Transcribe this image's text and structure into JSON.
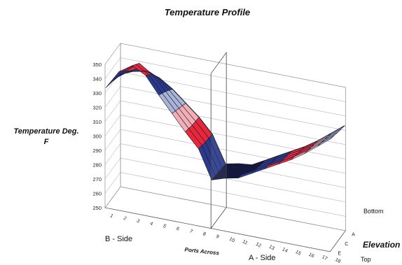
{
  "chart_data": {
    "type": "surface",
    "title": "Temperature Profile",
    "zlabel": [
      "Temperature Deg.",
      "F"
    ],
    "xlabel": "Ports Across",
    "ylabel": "Elevation",
    "x_categories": [
      "1",
      "2",
      "3",
      "4",
      "5",
      "6",
      "7",
      "8",
      "9",
      "10",
      "11",
      "12",
      "13",
      "14",
      "15",
      "16",
      "17",
      "18"
    ],
    "y_categories": [
      "A",
      "C",
      "E"
    ],
    "y_end_labels": [
      "Top",
      "Bottom"
    ],
    "side_labels": [
      "B - Side",
      "A - Side"
    ],
    "zlim": [
      250,
      350
    ],
    "z_ticks": [
      250,
      260,
      270,
      280,
      290,
      300,
      310,
      320,
      330,
      340,
      350
    ],
    "grid": true,
    "palette": {
      "red": "#e8283a",
      "pink": "#f2aeb4",
      "white": "#eef0f6",
      "light_blue": "#aab4d6",
      "blue": "#2a3a8c",
      "dark": "#14183e",
      "wire": "#1a1c30"
    },
    "color_bands": [
      {
        "min": 250,
        "max": 290,
        "color": "dark"
      },
      {
        "min": 290,
        "max": 300,
        "color": "blue"
      },
      {
        "min": 300,
        "max": 310,
        "color": "red"
      },
      {
        "min": 310,
        "max": 320,
        "color": "pink"
      },
      {
        "min": 320,
        "max": 330,
        "color": "light_blue"
      },
      {
        "min": 330,
        "max": 340,
        "color": "blue"
      },
      {
        "min": 340,
        "max": 360,
        "color": "red"
      }
    ],
    "series": [
      {
        "name": "A",
        "values": [
          329,
          333,
          335,
          332,
          326,
          318,
          310,
          300,
          281,
          283,
          284,
          289,
          294,
          299,
          304,
          310,
          317,
          324
        ]
      },
      {
        "name": "C",
        "values": [
          331,
          340,
          347,
          341,
          331,
          321,
          311,
          301,
          282,
          284,
          286,
          291,
          296,
          301,
          306,
          312,
          319,
          326
        ]
      },
      {
        "name": "E",
        "values": [
          333,
          346,
          352,
          347,
          335,
          324,
          313,
          303,
          283,
          286,
          288,
          293,
          298,
          303,
          308,
          314,
          321,
          328
        ]
      }
    ],
    "marker_plane_at_x": "9"
  }
}
